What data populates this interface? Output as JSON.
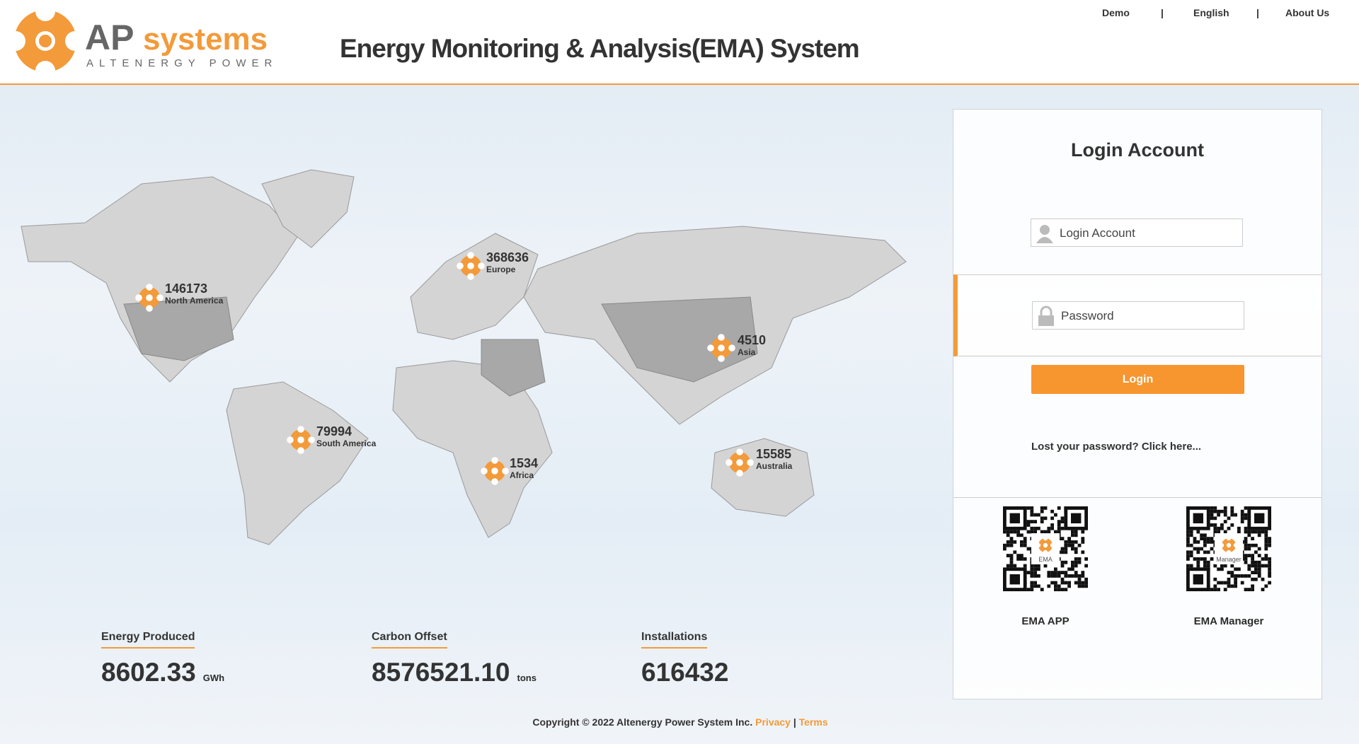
{
  "header": {
    "logo": {
      "brand_a": "AP",
      "brand_b": "systems",
      "tagline": "ALTENERGY POWER"
    },
    "title": "Energy Monitoring & Analysis(EMA) System",
    "nav": [
      "Demo",
      "English",
      "About Us"
    ],
    "nav_separators": [
      "|",
      "|"
    ]
  },
  "map": {
    "regions": [
      {
        "value": "146173",
        "name": "North America"
      },
      {
        "value": "368636",
        "name": "Europe"
      },
      {
        "value": "4510",
        "name": "Asia"
      },
      {
        "value": "79994",
        "name": "South America"
      },
      {
        "value": "1534",
        "name": "Africa"
      },
      {
        "value": "15585",
        "name": "Australia"
      }
    ]
  },
  "stats": [
    {
      "label": "Energy Produced",
      "value": "8602.33",
      "unit": "GWh"
    },
    {
      "label": "Carbon Offset",
      "value": "8576521.10",
      "unit": "tons"
    },
    {
      "label": "Installations",
      "value": "616432"
    }
  ],
  "login": {
    "title": "Login Account",
    "account_placeholder": "Login Account",
    "password_placeholder": "Password",
    "button": "Login",
    "forgot": "Lost your password? Click here...",
    "apps": [
      {
        "label": "EMA APP",
        "qr_caption": "EMA"
      },
      {
        "label": "EMA Manager",
        "qr_caption": "Manager"
      }
    ]
  },
  "footer": {
    "copyright": "Copyright © 2022 Altenergy Power System Inc.",
    "privacy": "Privacy",
    "separator": "|",
    "terms": "Terms"
  }
}
